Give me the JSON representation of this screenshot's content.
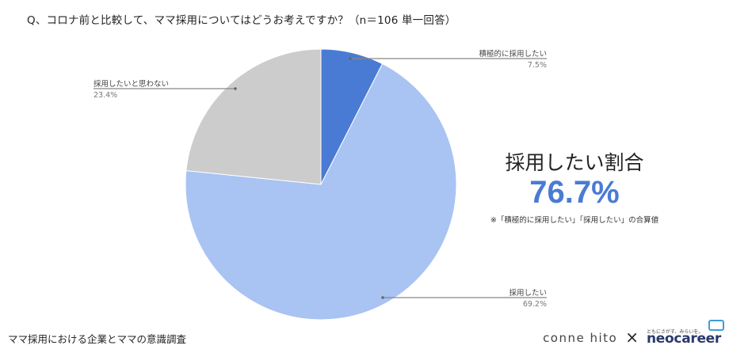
{
  "title": "Q、コロナ前と比較して、ママ採用についてはどうお考えですか？（n＝106 単一回答）",
  "chart_data": {
    "type": "pie",
    "slices": [
      {
        "label": "積極的に採用したい",
        "value": 7.5,
        "display": "7.5%",
        "color": "#4a7bd4"
      },
      {
        "label": "採用したい",
        "value": 69.2,
        "display": "69.2%",
        "color": "#a9c3f2"
      },
      {
        "label": "採用したいと思わない",
        "value": 23.4,
        "display": "23.4%",
        "color": "#cccccc"
      }
    ]
  },
  "callout": {
    "heading": "採用したい割合",
    "value": "76.7%",
    "note": "※「積極的に採用したい」「採用したい」の合算値"
  },
  "footer": "ママ採用における企業とママの意識調査",
  "logos": {
    "connehito": "conne hito",
    "times": "×",
    "neo_tagline": "ともにさがす、みらいを。",
    "neo_word": "neocareer"
  }
}
